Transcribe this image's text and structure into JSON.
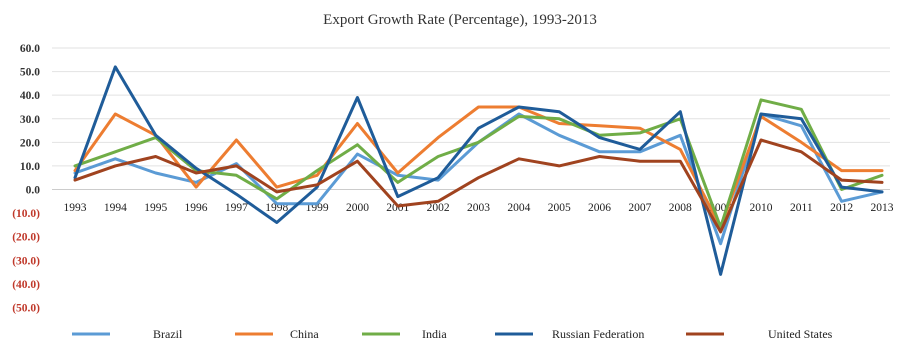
{
  "chart_data": {
    "type": "line",
    "title": "Export Growth Rate (Percentage), 1993-2013",
    "xlabel": "",
    "ylabel": "",
    "ylim": [
      -50,
      60
    ],
    "y_ticks": [
      {
        "value": 60,
        "label": "60.0"
      },
      {
        "value": 50,
        "label": "50.0"
      },
      {
        "value": 40,
        "label": "40.0"
      },
      {
        "value": 30,
        "label": "30.0"
      },
      {
        "value": 20,
        "label": "20.0"
      },
      {
        "value": 10,
        "label": "10.0"
      },
      {
        "value": 0,
        "label": "0.0"
      },
      {
        "value": -10,
        "label": "(10.0)"
      },
      {
        "value": -20,
        "label": "(20.0)"
      },
      {
        "value": -30,
        "label": "(30.0)"
      },
      {
        "value": -40,
        "label": "(40.0)"
      },
      {
        "value": -50,
        "label": "(50.0)"
      }
    ],
    "positive_tick_color": "#333333",
    "negative_tick_color": "#c0392b",
    "grid": true,
    "legend_position": "bottom",
    "categories": [
      "1993",
      "1994",
      "1995",
      "1996",
      "1997",
      "1998",
      "1999",
      "2000",
      "2001",
      "2002",
      "2003",
      "2004",
      "2005",
      "2006",
      "2007",
      "2008",
      "2009",
      "2010",
      "2011",
      "2012",
      "2013"
    ],
    "series": [
      {
        "name": "Brazil",
        "color": "#5b9bd5",
        "values": [
          7,
          13,
          7,
          3,
          11,
          -6,
          -6,
          15,
          6,
          4,
          20,
          32,
          23,
          16,
          16,
          23,
          -23,
          32,
          27,
          -5,
          -1
        ]
      },
      {
        "name": "China",
        "color": "#ed7d31",
        "values": [
          8,
          32,
          23,
          1,
          21,
          1,
          6,
          28,
          7,
          22,
          35,
          35,
          28,
          27,
          26,
          17,
          -16,
          31,
          20,
          8,
          8
        ]
      },
      {
        "name": "India",
        "color": "#70ad47",
        "values": [
          10,
          16,
          22,
          8,
          6,
          -4,
          8,
          19,
          3,
          14,
          20,
          31,
          30,
          23,
          24,
          30,
          -16,
          38,
          34,
          0,
          6
        ]
      },
      {
        "name": "Russian Federation",
        "color": "#1f5c99",
        "values": [
          5,
          52,
          23,
          9,
          -2,
          -14,
          1,
          39,
          -3,
          5,
          26,
          35,
          33,
          22,
          17,
          33,
          -36,
          32,
          30,
          1,
          -1
        ]
      },
      {
        "name": "United States",
        "color": "#a0431f",
        "values": [
          4,
          10,
          14,
          7,
          10,
          -1,
          2,
          12,
          -7,
          -5,
          5,
          13,
          10,
          14,
          12,
          12,
          -18,
          21,
          16,
          4,
          3
        ]
      }
    ]
  }
}
